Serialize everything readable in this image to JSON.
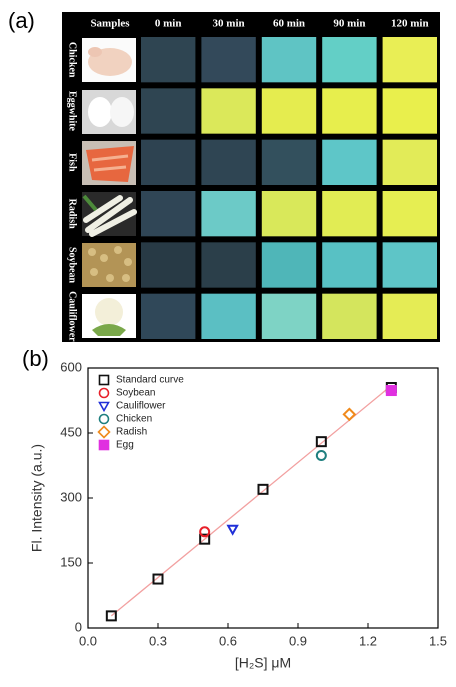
{
  "panel_a": {
    "label": "(a)",
    "columns": [
      "Samples",
      "0 min",
      "30 min",
      "60 min",
      "90 min",
      "120 min"
    ],
    "rows": [
      {
        "name": "Chicken",
        "cells": [
          "#2f4552",
          "#33495a",
          "#5fc4c4",
          "#63cfc6",
          "#e9ee55"
        ]
      },
      {
        "name": "Eggwhite",
        "cells": [
          "#2f4552",
          "#dbe85a",
          "#e5ec4f",
          "#e7ee4d",
          "#e9ef4c"
        ]
      },
      {
        "name": "Fish",
        "cells": [
          "#2e4351",
          "#2f4553",
          "#33505d",
          "#5ec6c8",
          "#e2eb58"
        ]
      },
      {
        "name": "Radish",
        "cells": [
          "#304656",
          "#6ccac7",
          "#d9e85a",
          "#e1ec54",
          "#e6ee52"
        ]
      },
      {
        "name": "Soybean",
        "cells": [
          "#283a45",
          "#2b3f4a",
          "#4fb6b8",
          "#58c1c4",
          "#5ec5c7"
        ]
      },
      {
        "name": "Cauliflower",
        "cells": [
          "#304859",
          "#5bbfc3",
          "#7ed3c5",
          "#d4e55d",
          "#e5ec55"
        ]
      }
    ]
  },
  "chart_data": {
    "type": "scatter",
    "panel_label": "(b)",
    "x_label": "[H₂S] μM",
    "y_label": "Fl. Intensity (a.u.)",
    "xlim": [
      0,
      1.5
    ],
    "ylim": [
      0,
      600
    ],
    "xticks": [
      {
        "value": 0,
        "label": "0.0"
      },
      0.3,
      0.6,
      0.9,
      1.2,
      1.5
    ],
    "yticks": [
      0,
      150,
      300,
      450,
      600
    ],
    "legend": "upper left",
    "fit_color": "#f2a0a0",
    "series": [
      {
        "name": "Standard curve",
        "color": "#111111",
        "marker": "square",
        "filled": false,
        "x": [
          0.1,
          0.3,
          0.5,
          0.75,
          1.0,
          1.3
        ],
        "values": [
          28,
          113,
          205,
          320,
          430,
          555
        ]
      },
      {
        "name": "Soybean",
        "color": "#e8202a",
        "marker": "circle",
        "filled": false,
        "x": [
          0.5
        ],
        "values": [
          222
        ]
      },
      {
        "name": "Cauliflower",
        "color": "#1f2fd8",
        "marker": "triangle-down",
        "filled": false,
        "x": [
          0.62
        ],
        "values": [
          228
        ]
      },
      {
        "name": "Chicken",
        "color": "#1f7f7f",
        "marker": "circle",
        "filled": false,
        "x": [
          1.0
        ],
        "values": [
          398
        ]
      },
      {
        "name": "Radish",
        "color": "#f08a1c",
        "marker": "diamond",
        "filled": false,
        "x": [
          1.12
        ],
        "values": [
          493
        ]
      },
      {
        "name": "Egg",
        "color": "#e030e0",
        "marker": "square",
        "filled": true,
        "x": [
          1.3
        ],
        "values": [
          548
        ]
      }
    ]
  }
}
